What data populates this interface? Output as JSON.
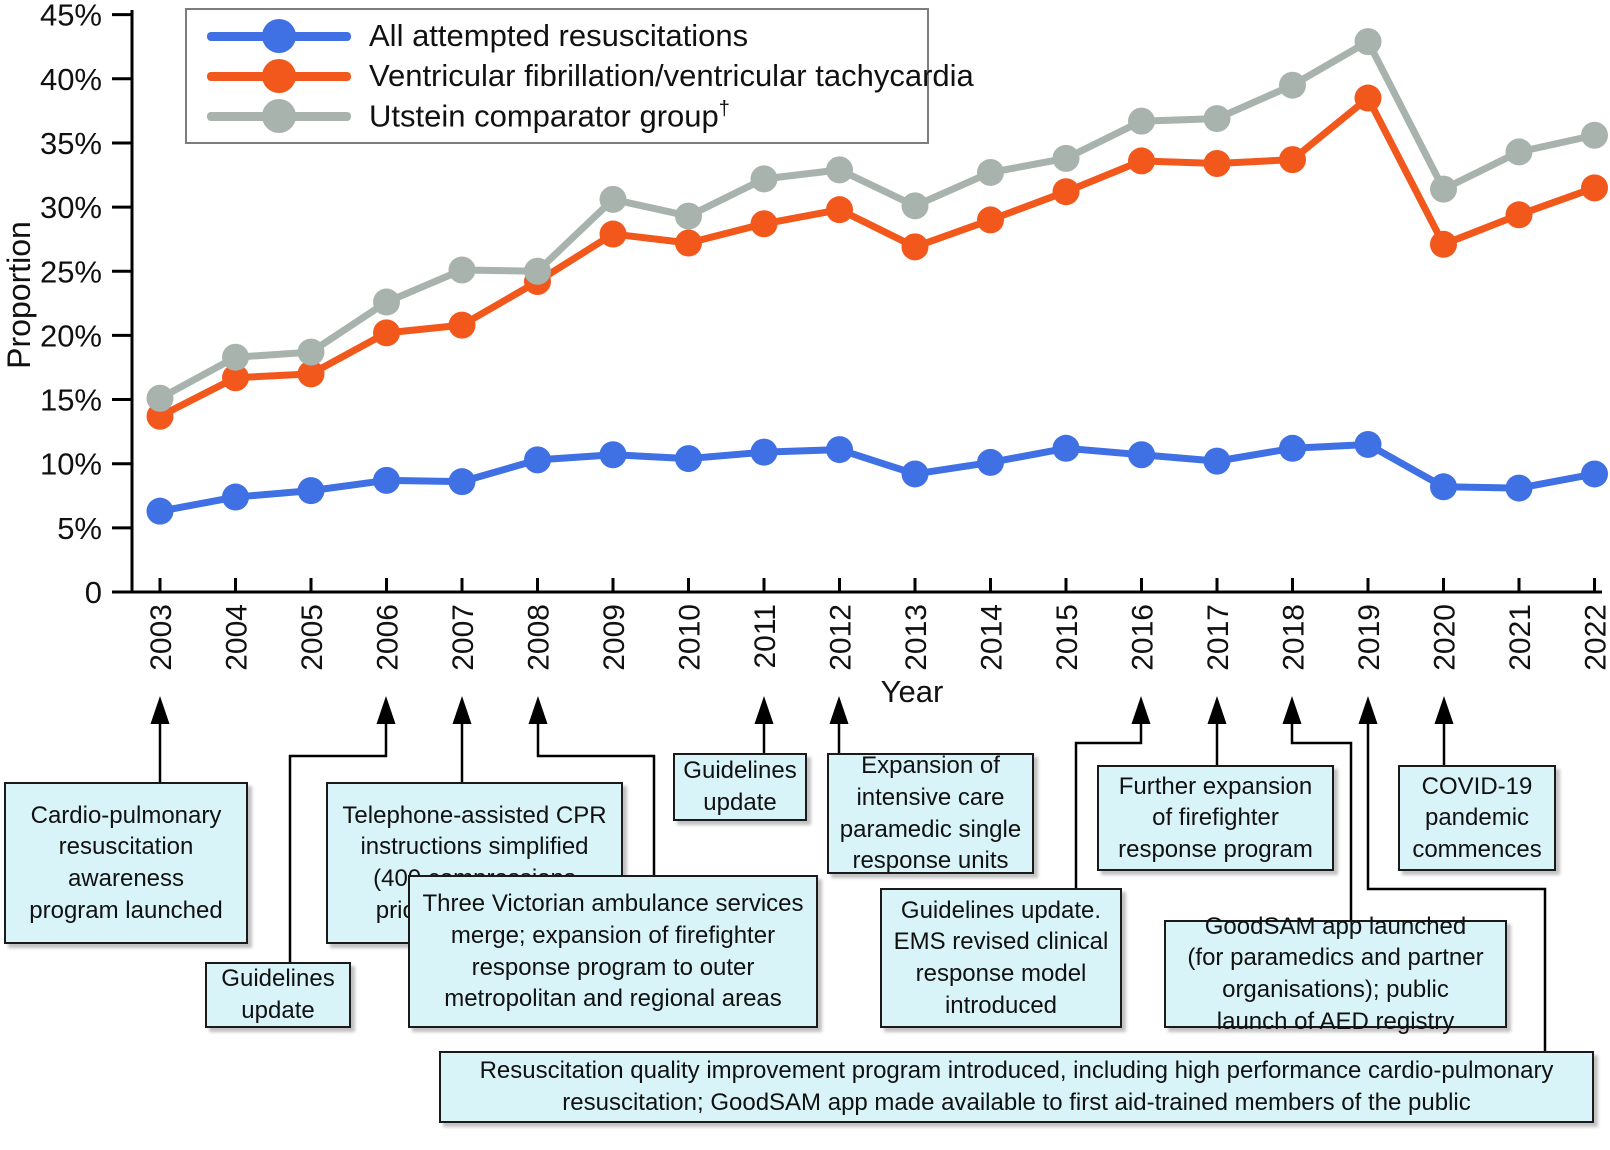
{
  "colors": {
    "series_all": "#3f70e4",
    "series_vfvt": "#f2581c",
    "series_utstein": "#a8b3ae",
    "annotation_fill": "#d9f4f8",
    "annotation_border": "#1a1a1a",
    "axis": "#000000"
  },
  "chart_data": {
    "type": "line",
    "title": "",
    "xlabel": "Year",
    "ylabel": "Proportion",
    "ylim": [
      0,
      45
    ],
    "grid": false,
    "legend_position": "top-left",
    "x": [
      2003,
      2004,
      2005,
      2006,
      2007,
      2008,
      2009,
      2010,
      2011,
      2012,
      2013,
      2014,
      2015,
      2016,
      2017,
      2018,
      2019,
      2020,
      2021,
      2022
    ],
    "y_ticks": [
      {
        "v": 45,
        "label": "45%"
      },
      {
        "v": 40,
        "label": "40%"
      },
      {
        "v": 35,
        "label": "35%"
      },
      {
        "v": 30,
        "label": "30%"
      },
      {
        "v": 25,
        "label": "25%"
      },
      {
        "v": 20,
        "label": "20%"
      },
      {
        "v": 15,
        "label": "15%"
      },
      {
        "v": 10,
        "label": "10%"
      },
      {
        "v": 5,
        "label": "5%"
      },
      {
        "v": 0,
        "label": "0"
      }
    ],
    "series": [
      {
        "name": "All attempted resuscitations",
        "sup": "",
        "color": "#3f70e4",
        "values": [
          6.3,
          7.4,
          7.9,
          8.7,
          8.6,
          10.3,
          10.7,
          10.4,
          10.9,
          11.1,
          9.2,
          10.1,
          11.2,
          10.7,
          10.2,
          11.2,
          11.5,
          8.2,
          8.1,
          9.2
        ]
      },
      {
        "name": "Ventricular fibrillation/ventricular tachycardia",
        "sup": "",
        "color": "#f2581c",
        "values": [
          13.7,
          16.7,
          17.0,
          20.2,
          20.8,
          24.2,
          27.9,
          27.2,
          28.7,
          29.8,
          26.9,
          29.0,
          31.2,
          33.6,
          33.4,
          33.7,
          38.5,
          27.1,
          29.4,
          31.5
        ]
      },
      {
        "name": "Utstein comparator group",
        "sup": "†",
        "color": "#a8b3ae",
        "values": [
          15.1,
          18.3,
          18.7,
          22.6,
          25.1,
          25.0,
          30.6,
          29.3,
          32.2,
          32.9,
          30.1,
          32.7,
          33.8,
          36.7,
          36.9,
          39.5,
          42.9,
          31.4,
          34.3,
          35.6
        ]
      }
    ]
  },
  "annotations": [
    {
      "id": "cpr-awareness",
      "points_to_year": 2003,
      "text": "Cardio-pulmonary\nresuscitation\nawareness\nprogram launched"
    },
    {
      "id": "guidelines-2006",
      "points_to_year": 2006,
      "text": "Guidelines\nupdate"
    },
    {
      "id": "telephone-cpr",
      "points_to_year": 2007,
      "text": "Telephone-assisted CPR\ninstructions simplified\n(400 compressions\nprior to ventilation)"
    },
    {
      "id": "services-merge",
      "points_to_year": 2008,
      "text": "Three Victorian ambulance services\nmerge; expansion of firefighter\nresponse program to outer\nmetropolitan and regional areas"
    },
    {
      "id": "guidelines-2011",
      "points_to_year": 2011,
      "text": "Guidelines\nupdate"
    },
    {
      "id": "mica-expansion",
      "points_to_year": 2012,
      "text": "Expansion of\nintensive care\nparamedic single\nresponse units"
    },
    {
      "id": "guidelines-ems",
      "points_to_year": 2016,
      "text": "Guidelines update.\nEMS revised clinical\nresponse model\nintroduced"
    },
    {
      "id": "firefighter-expansion",
      "points_to_year": 2017,
      "text": "Further expansion\nof firefighter\nresponse program"
    },
    {
      "id": "goodsam-launch",
      "points_to_year": 2018,
      "text": "GoodSAM app launched\n(for paramedics and partner\norganisations); public\nlaunch of AED registry"
    },
    {
      "id": "covid",
      "points_to_year": 2020,
      "text": "COVID-19\npandemic\ncommences"
    },
    {
      "id": "rqi-program",
      "points_to_year": 2019,
      "text": "Resuscitation quality improvement program introduced, including high performance cardio-pulmonary\nresuscitation; GoodSAM app made available to first aid-trained members of the public"
    }
  ]
}
